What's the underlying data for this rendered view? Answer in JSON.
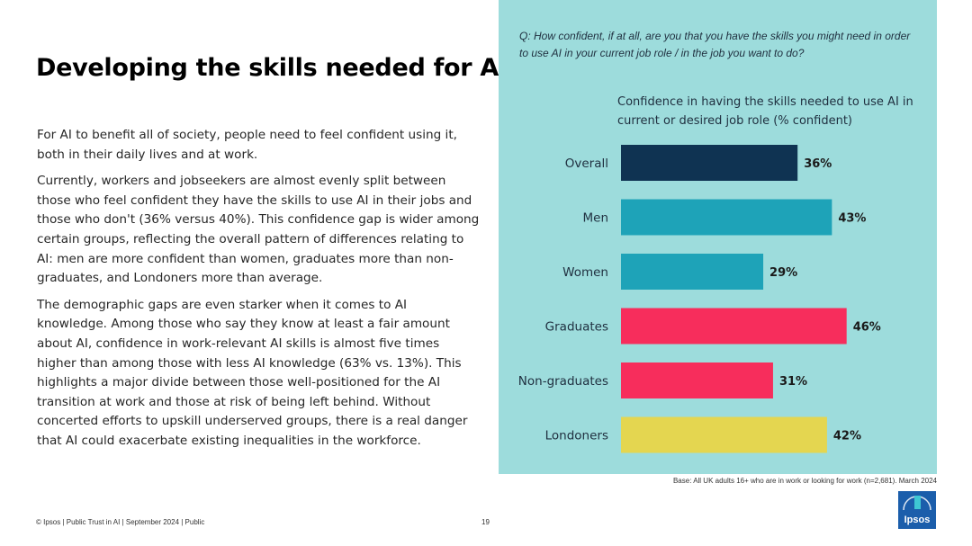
{
  "page": {
    "title": "Developing the skills needed for AI",
    "paragraphs": [
      "For AI to benefit all of society, people need to feel confident using it, both in their daily lives and at work.",
      "Currently, workers and jobseekers are almost evenly split between those who feel confident they have the skills to use AI in their jobs and those who don't (36% versus 40%). This confidence gap is wider among certain groups, reflecting the overall pattern of differences relating to AI: men are more confident than women, graduates more than non-graduates, and Londoners more than average.",
      "The demographic gaps are even starker when it comes to AI knowledge. Among those who say they know at least a fair amount about AI, confidence in work-relevant AI skills is almost five times higher than among those with less AI knowledge (63% vs. 13%). This highlights a major divide between those well-positioned for the AI transition at work and those at risk of being left behind. Without concerted efforts to upskill underserved groups, there is a real danger that AI could exacerbate existing inequalities in the workforce."
    ],
    "question": "Q: How confident, if at all, are you that you have the skills you might need in order to use AI in your current job role / in the job you want to do?",
    "base_note": "Base: All UK adults 16+ who are in work or looking for work (n=2,681). March 2024",
    "footer": "© Ipsos | Public Trust in AI | September 2024 | Public",
    "page_number": "19",
    "logo_text": "Ipsos"
  },
  "colors": {
    "panel_bg": "#9ddcdc",
    "overall": "#0f3352",
    "gender": "#1ea3b8",
    "education": "#f72d5c",
    "region": "#e4d650",
    "logo_blue": "#1b5eab"
  },
  "chart_data": {
    "type": "bar",
    "orientation": "horizontal",
    "title": "Confidence in having the skills needed to use AI in current or desired job role (% confident)",
    "categories": [
      "Overall",
      "Men",
      "Women",
      "Graduates",
      "Non-graduates",
      "Londoners"
    ],
    "values": [
      36,
      43,
      29,
      46,
      31,
      42
    ],
    "data_labels": [
      "36%",
      "43%",
      "29%",
      "46%",
      "31%",
      "42%"
    ],
    "bar_colors": [
      "#0f3352",
      "#1ea3b8",
      "#1ea3b8",
      "#f72d5c",
      "#f72d5c",
      "#e4d650"
    ],
    "xlim": [
      0,
      100
    ],
    "grid": false,
    "legend": "none"
  }
}
